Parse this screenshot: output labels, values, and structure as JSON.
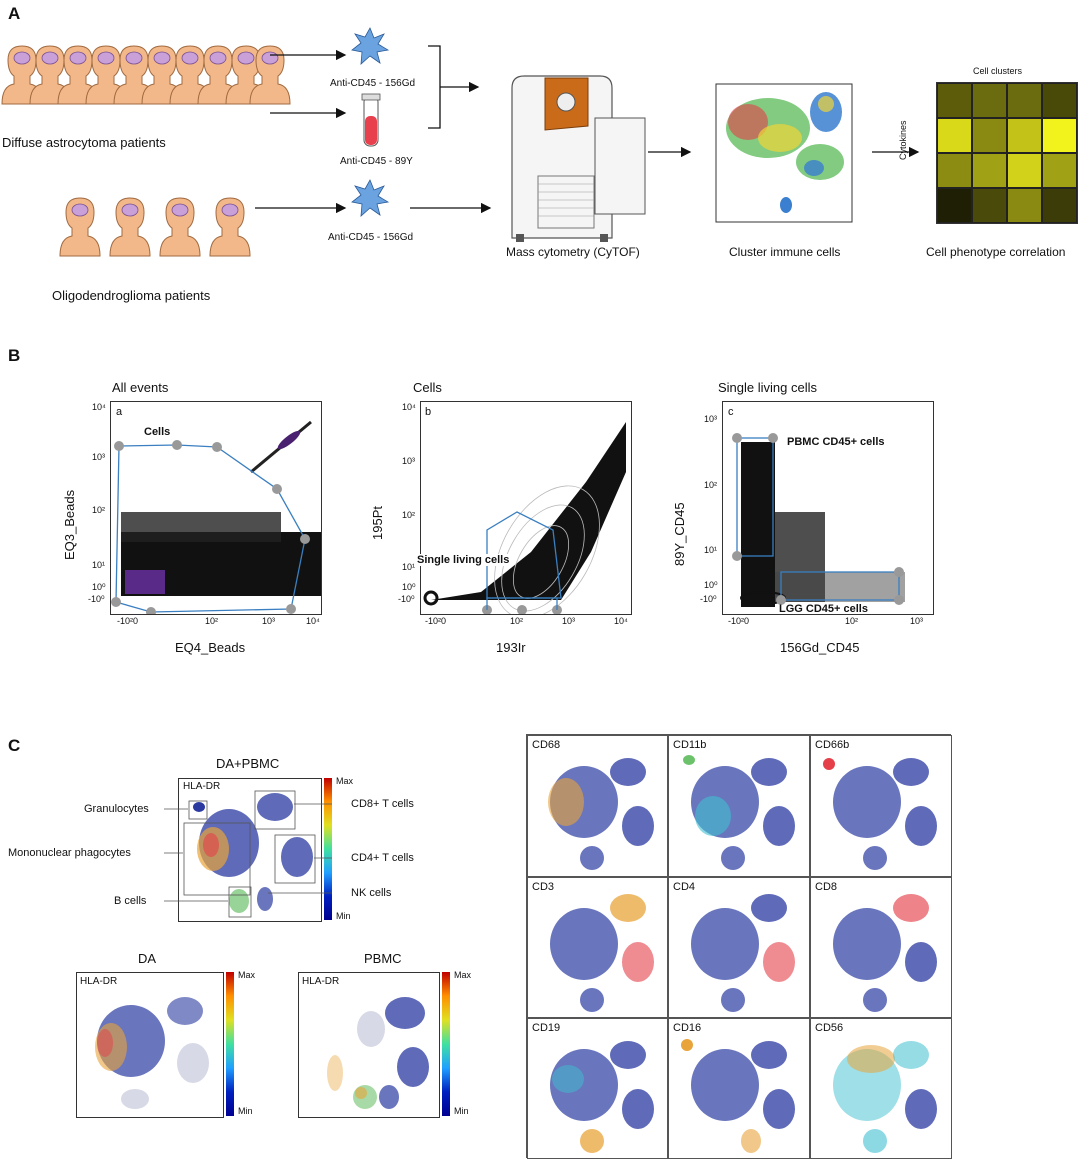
{
  "panels": {
    "a": "A",
    "b": "B",
    "c": "C"
  },
  "panelA": {
    "group1": "Diffuse astrocytoma patients",
    "group2": "Oligodendroglioma patients",
    "reagent1": "Anti-CD45 - 156Gd",
    "reagent2": "Anti-CD45 - 89Y",
    "reagent3": "Anti-CD45 - 156Gd",
    "step1": "Mass cytometry (CyTOF)",
    "step2": "Cluster immune cells",
    "step3": "Cell phenotype correlation",
    "heatmap_title": "Cell clusters",
    "heatmap_ylabel": "Cytokines",
    "heatmap_colors": [
      [
        "#5c5c0a",
        "#6b6b10",
        "#6b6b10",
        "#4a4a08"
      ],
      [
        "#d9d919",
        "#8a8a12",
        "#c2c218",
        "#f2f21c"
      ],
      [
        "#8c8c13",
        "#a1a115",
        "#d2d21a",
        "#a1a115"
      ],
      [
        "#1f1f05",
        "#4a4a0b",
        "#8a8a12",
        "#3c3c09"
      ]
    ]
  },
  "panelB": {
    "plots": [
      {
        "title": "All events",
        "letter": "a",
        "gate": "Cells",
        "xlabel": "EQ4_Beads",
        "ylabel": "EQ3_Beads"
      },
      {
        "title": "Cells",
        "letter": "b",
        "gate": "Single living cells",
        "xlabel": "193Ir",
        "ylabel": "195Pt"
      },
      {
        "title": "Single living cells",
        "letter": "c",
        "gate": "PBMC CD45+ cells",
        "gate2": "LGG CD45+ cells",
        "xlabel": "156Gd_CD45",
        "ylabel": "89Y_CD45"
      }
    ],
    "ticks_x": [
      "-10²0",
      "10²",
      "10³",
      "10⁴"
    ],
    "ticks_y": [
      "-10⁰",
      "10⁰",
      "10¹",
      "10²",
      "10³",
      "10⁴"
    ]
  },
  "panelC": {
    "main_title": "DA+PBMC",
    "main_marker": "HLA-DR",
    "populations": [
      "Granulocytes",
      "Mononuclear phagocytes",
      "B cells",
      "CD8+ T cells",
      "CD4+ T cells",
      "NK cells"
    ],
    "scale_max": "Max",
    "scale_min": "Min",
    "sub1_title": "DA",
    "sub2_title": "PBMC",
    "sub_marker": "HLA-DR",
    "grid_markers": [
      "CD68",
      "CD11b",
      "CD66b",
      "CD3",
      "CD4",
      "CD8",
      "CD19",
      "CD16",
      "CD56"
    ]
  }
}
